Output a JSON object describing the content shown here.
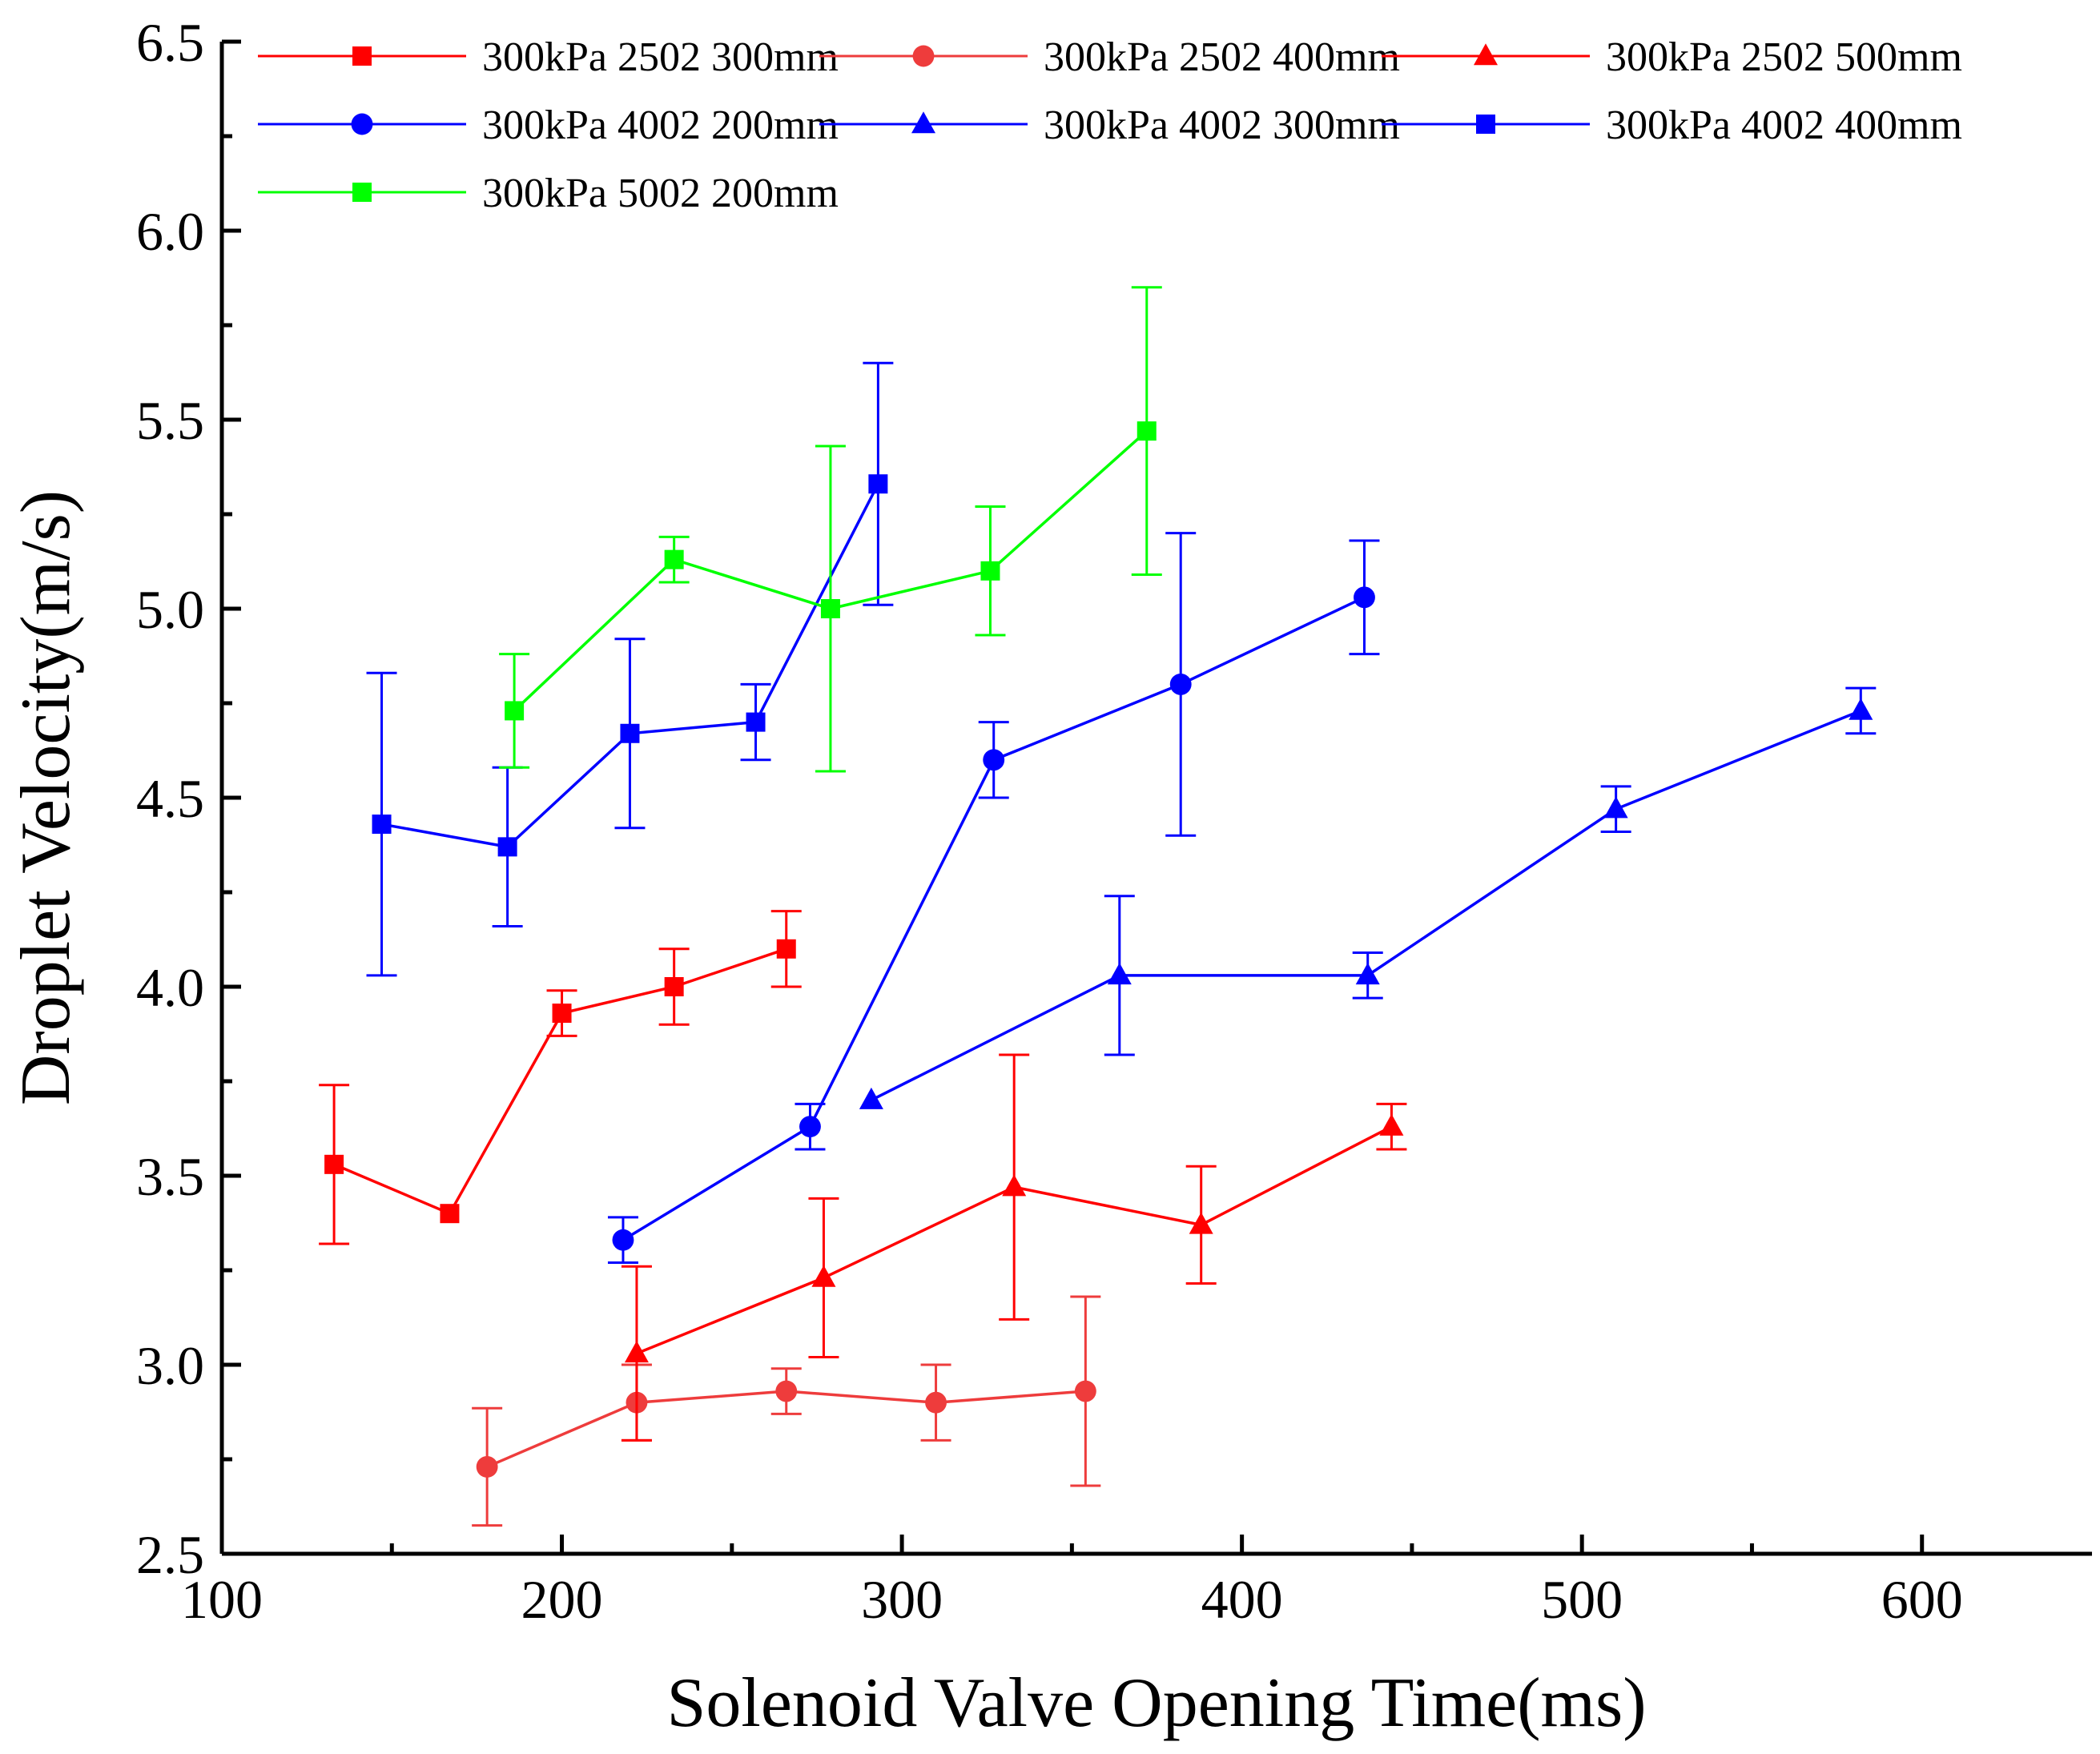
{
  "chart_data": {
    "type": "line",
    "title": "",
    "xlabel": "Solenoid Valve Opening Time(ms)",
    "ylabel": "Droplet Velocity(m/s)",
    "xlim": [
      100,
      650
    ],
    "ylim": [
      2.5,
      6.5
    ],
    "x_ticks": [
      100,
      200,
      300,
      400,
      500,
      600
    ],
    "x_tick_labels": [
      "100",
      "200",
      "300",
      "400",
      "500",
      "600"
    ],
    "y_ticks": [
      2.5,
      3.0,
      3.5,
      4.0,
      4.5,
      5.0,
      5.5,
      6.0,
      6.5
    ],
    "y_tick_labels": [
      "2.5",
      "3.0",
      "3.5",
      "4.0",
      "4.5",
      "5.0",
      "5.5",
      "6.0",
      "6.5"
    ],
    "grid": false,
    "legend_position": "top",
    "series": [
      {
        "name": "300kPa 2502 300mm",
        "color": "#ff0000",
        "marker": "square",
        "x": [
          133,
          167,
          200,
          233,
          266
        ],
        "y": [
          3.53,
          3.4,
          3.93,
          4.0,
          4.1
        ],
        "err": [
          0.21,
          null,
          0.06,
          0.1,
          0.1
        ]
      },
      {
        "name": "300kPa 2502 400mm",
        "color": "#ee3c3c",
        "marker": "circle",
        "x": [
          178,
          222,
          266,
          310,
          354
        ],
        "y": [
          2.73,
          2.9,
          2.93,
          2.9,
          2.93
        ],
        "err": [
          0.155,
          0.1,
          0.06,
          0.1,
          0.25
        ]
      },
      {
        "name": "300kPa 2502 500mm",
        "color": "#ff0000",
        "marker": "triangle",
        "x": [
          222,
          277,
          333,
          388,
          444
        ],
        "y": [
          3.03,
          3.23,
          3.47,
          3.37,
          3.63
        ],
        "err": [
          0.23,
          0.21,
          0.35,
          0.155,
          0.06
        ]
      },
      {
        "name": "300kPa 4002 200mm",
        "color": "#0000ff",
        "marker": "circle",
        "x": [
          218,
          273,
          327,
          382,
          436
        ],
        "y": [
          3.33,
          3.63,
          4.6,
          4.8,
          5.03
        ],
        "err": [
          0.06,
          0.06,
          0.1,
          0.4,
          0.15
        ]
      },
      {
        "name": "300kPa 4002 300mm",
        "color": "#0000ff",
        "marker": "triangle",
        "x": [
          291,
          364,
          437,
          510,
          582
        ],
        "y": [
          3.7,
          4.03,
          4.03,
          4.47,
          4.73
        ],
        "err": [
          null,
          0.21,
          0.06,
          0.06,
          0.06
        ]
      },
      {
        "name": "300kPa 4002 400mm",
        "color": "#0000ff",
        "marker": "square",
        "x": [
          147,
          184,
          220,
          257,
          293
        ],
        "y": [
          4.43,
          4.37,
          4.67,
          4.7,
          5.33
        ],
        "err": [
          0.4,
          0.21,
          0.25,
          0.1,
          0.32
        ]
      },
      {
        "name": "300kPa 5002 200mm",
        "color": "#00ff00",
        "marker": "square",
        "x": [
          186,
          233,
          279,
          326,
          372
        ],
        "y": [
          4.73,
          5.13,
          5.0,
          5.1,
          5.47
        ],
        "err": [
          0.15,
          0.06,
          0.43,
          0.17,
          0.38
        ]
      }
    ]
  }
}
